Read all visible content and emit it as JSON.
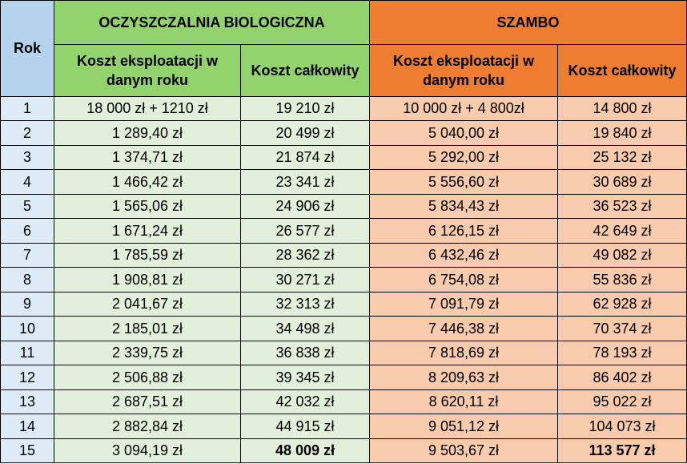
{
  "header": {
    "rok": "Rok",
    "groups": [
      "OCZYSZCZALNIA BIOLOGICZNA",
      "SZAMBO"
    ],
    "columns": [
      "Koszt eksploatacji w danym roku",
      "Koszt całkowity",
      "Koszt eksploatacji w danym roku",
      "Koszt całkowity"
    ]
  },
  "table": {
    "rows": [
      [
        "1",
        "18 000 zł + 1210 zł",
        "19 210 zł",
        "10 000 zł + 4 800zł",
        "14 800 zł"
      ],
      [
        "2",
        "1 289,40 zł",
        "20 499 zł",
        "5 040,00 zł",
        "19 840 zł"
      ],
      [
        "3",
        "1 374,71 zł",
        "21 874 zł",
        "5 292,00 zł",
        "25 132 zł"
      ],
      [
        "4",
        "1 466,42 zł",
        "23 341 zł",
        "5 556,60 zł",
        "30 689 zł"
      ],
      [
        "5",
        "1 565,06 zł",
        "24 906 zł",
        "5 834,43 zł",
        "36 523 zł"
      ],
      [
        "6",
        "1 671,24 zł",
        "26 577 zł",
        "6 126,15 zł",
        "42 649 zł"
      ],
      [
        "7",
        "1 785,59 zł",
        "28 362 zł",
        "6 432,46 zł",
        "49 082 zł"
      ],
      [
        "8",
        "1 908,81 zł",
        "30 271 zł",
        "6 754,08 zł",
        "55 836 zł"
      ],
      [
        "9",
        "2 041,67 zł",
        "32 313 zł",
        "7 091,79 zł",
        "62 928 zł"
      ],
      [
        "10",
        "2 185,01 zł",
        "34 498 zł",
        "7 446,38 zł",
        "70 374 zł"
      ],
      [
        "11",
        "2 339,75 zł",
        "36 838 zł",
        "7 818,69 zł",
        "78 193 zł"
      ],
      [
        "12",
        "2 506,88 zł",
        "39 345 zł",
        "8 209,63 zł",
        "86 402 zł"
      ],
      [
        "13",
        "2 687,51 zł",
        "42 032 zł",
        "8 620,11 zł",
        "95 022 zł"
      ],
      [
        "14",
        "2 882,84 zł",
        "44 915 zł",
        "9 051,12 zł",
        "104 073 zł"
      ],
      [
        "15",
        "3 094,19 zł",
        "48 009 zł",
        "9 503,67 zł",
        "113 577 zł"
      ]
    ]
  }
}
